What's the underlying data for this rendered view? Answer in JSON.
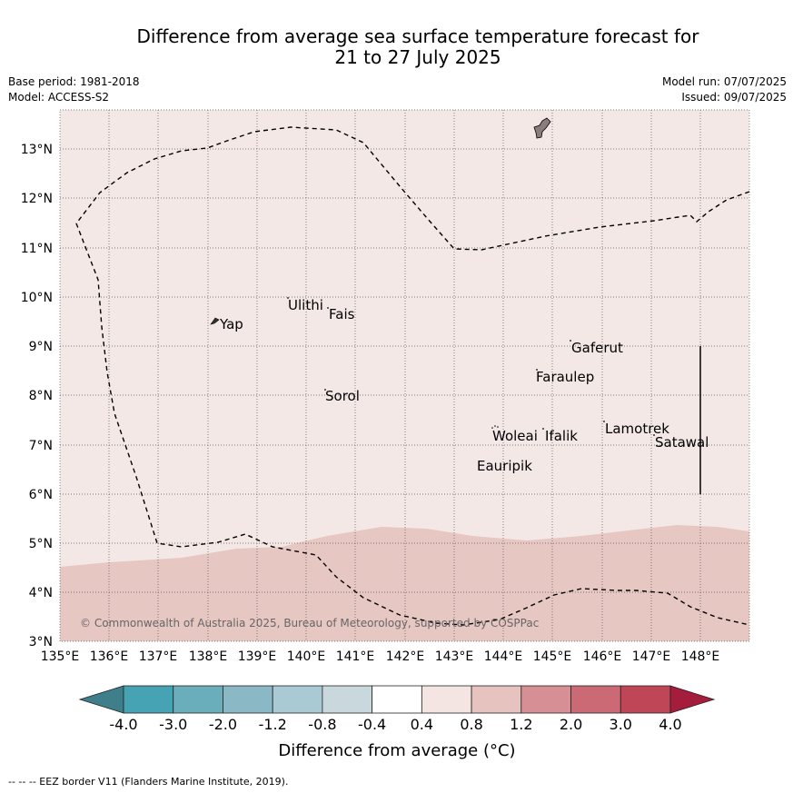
{
  "title_line1": "Difference from average sea surface temperature forecast for",
  "title_line2": "21 to 27 July 2025",
  "base_period": "Base period: 1981-2018",
  "model": "Model: ACCESS-S2",
  "model_run": "Model run: 07/07/2025",
  "issued": "Issued: 09/07/2025",
  "lat_labels": [
    "13°N",
    "12°N",
    "11°N",
    "10°N",
    "9°N",
    "8°N",
    "7°N",
    "6°N",
    "5°N",
    "4°N",
    "3°N"
  ],
  "lon_labels": [
    "135°E",
    "136°E",
    "137°E",
    "138°E",
    "139°E",
    "140°E",
    "141°E",
    "142°E",
    "143°E",
    "144°E",
    "145°E",
    "146°E",
    "147°E",
    "148°E"
  ],
  "places": {
    "ulithi": "Ulithi",
    "fais": "Fais",
    "yap": "Yap",
    "gaferut": "Gaferut",
    "faraulep": "Faraulep",
    "sorol": "Sorol",
    "woleai": "Woleai",
    "ifalik": "Ifalik",
    "lamotrek": "Lamotrek",
    "satawal": "Satawal",
    "eauripik": "Eauripik"
  },
  "copyright": "© Commonwealth of Australia 2025, Bureau of Meteorology, supported by COSPPac",
  "colorbar": {
    "labels": [
      "-4.0",
      "-3.0",
      "-2.0",
      "-1.2",
      "-0.8",
      "-0.4",
      "0.4",
      "0.8",
      "1.2",
      "2.0",
      "3.0",
      "4.0"
    ],
    "colors": [
      "#3f7e8b",
      "#46a3b3",
      "#6aaebc",
      "#8ab8c4",
      "#a9cad2",
      "#c8d8dc",
      "#ffffff",
      "#f4e5e3",
      "#e6c3be",
      "#d68f94",
      "#cb6a75",
      "#bf4656",
      "#a51d3c"
    ],
    "title": "Difference from average (°C)"
  },
  "footnote": "-- -- -- EEZ border V11 (Flanders Marine Institute, 2019)."
}
